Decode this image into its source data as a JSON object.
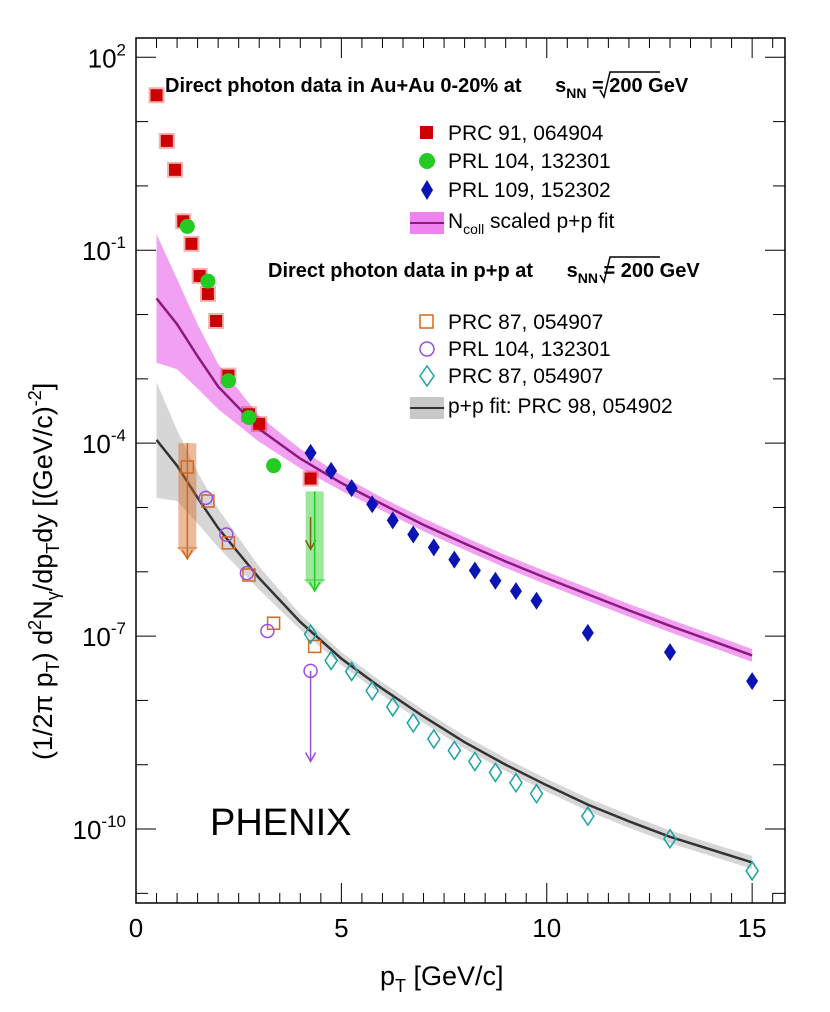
{
  "chart_data": {
    "type": "scatter",
    "title": "",
    "xlabel": "p_T [GeV/c]",
    "xlabel_parts": {
      "main": "p",
      "sub": "T",
      "rest": " [GeV/c]"
    },
    "ylabel_parts": [
      "(1/2π p",
      "T",
      ") d",
      "2",
      "N",
      "γ",
      "/dp",
      "T",
      "dy [(GeV/c)",
      "-2",
      "]"
    ],
    "xlim": [
      0,
      15.8
    ],
    "ylim_log10": [
      -11.15,
      2.3
    ],
    "xticks": [
      0,
      5,
      10,
      15
    ],
    "xtick_labels": [
      "0",
      "5",
      "10",
      "15"
    ],
    "yticks_log10": [
      2,
      -1,
      -4,
      -7,
      -10
    ],
    "ytick_labels": [
      [
        "10",
        "2"
      ],
      [
        "10",
        "-1"
      ],
      [
        "10",
        "-4"
      ],
      [
        "10",
        "-7"
      ],
      [
        "10",
        "-10"
      ]
    ],
    "watermark": "PHENIX",
    "legend_auau": {
      "title_main": "Direct photon data in Au+Au 0-20% at ",
      "title_s": "s",
      "title_sub": "NN",
      "title_end": " = 200 GeV",
      "entries": [
        "PRC 91, 064904",
        "PRL 104, 132301",
        "PRL 109, 152302"
      ],
      "fit_main": "N",
      "fit_sub": "coll",
      "fit_rest": " scaled p+p fit"
    },
    "legend_pp": {
      "title_main": "Direct photon data in p+p at ",
      "title_s": "s",
      "title_sub": "NN",
      "title_end": " = 200 GeV",
      "entries": [
        "PRC 87, 054907",
        "PRL 104, 132301",
        "PRC 87, 054907"
      ],
      "fit_label": "p+p fit: PRC 98, 054902"
    },
    "colors": {
      "prc91": "#cc0000",
      "prl104_auau": "#22cc22",
      "prl109": "#0a14b4",
      "ncoll_fit_line": "#8a1a7e",
      "ncoll_fit_band": "#ee82ee",
      "prc87_square": "#d2691e",
      "prl104_pp": "#9a4fe0",
      "prc87_diamond": "#1ba3a3",
      "pp_fit_line": "#333333",
      "pp_fit_band": "#c8c8c8"
    },
    "series": [
      {
        "name": "PRC 91, 064904",
        "marker": "square",
        "color": "prc91",
        "x": [
          0.5,
          0.75,
          0.95,
          1.15,
          1.35,
          1.55,
          1.75,
          1.95,
          2.25,
          2.75,
          3.0,
          4.25
        ],
        "y_log10": [
          1.41,
          0.7,
          0.25,
          -0.55,
          -0.9,
          -1.4,
          -1.68,
          -2.1,
          -2.95,
          -3.55,
          -3.7,
          -4.55
        ],
        "upper_limit_x": [
          4.25
        ],
        "upper_limit_from": [
          -5.15
        ],
        "upper_limit_to": [
          -5.65
        ]
      },
      {
        "name": "PRL 104, 132301",
        "marker": "circle",
        "color": "prl104_auau",
        "x": [
          1.25,
          1.75,
          2.25,
          2.75,
          3.35
        ],
        "y_log10": [
          -0.63,
          -1.48,
          -3.03,
          -3.6,
          -4.35
        ],
        "upper_limit_x": [
          4.35
        ],
        "upper_limit_from": [
          -4.75
        ],
        "upper_limit_to": [
          -6.3
        ]
      },
      {
        "name": "PRL 109, 152302",
        "marker": "diamond",
        "color": "prl109",
        "x": [
          4.25,
          4.75,
          5.25,
          5.75,
          6.25,
          6.75,
          7.25,
          7.75,
          8.25,
          8.75,
          9.25,
          9.75,
          11.0,
          13.0,
          15.0
        ],
        "y_log10": [
          -4.15,
          -4.43,
          -4.7,
          -4.95,
          -5.2,
          -5.42,
          -5.62,
          -5.81,
          -5.98,
          -6.14,
          -6.3,
          -6.45,
          -6.95,
          -7.25,
          -7.7
        ]
      },
      {
        "name": "PRC 87, 054907",
        "marker": "open-square",
        "color": "prc87_square",
        "x": [
          1.25,
          1.75,
          2.25,
          2.75,
          3.35,
          4.35
        ],
        "y_log10": [
          -4.37,
          -4.9,
          -5.55,
          -6.05,
          -6.8,
          -7.16
        ],
        "upper_limit_x": [
          1.25
        ],
        "upper_limit_from": [
          -4.0
        ],
        "upper_limit_to": [
          -5.8
        ]
      },
      {
        "name": "PRL 104, 132301",
        "marker": "open-circle",
        "color": "prl104_pp",
        "x": [
          1.7,
          2.2,
          2.7,
          3.2,
          4.25
        ],
        "y_log10": [
          -4.85,
          -5.42,
          -6.02,
          -6.92,
          -7.54
        ],
        "upper_limit_x": [
          4.25
        ],
        "upper_limit_from": [
          -7.54
        ],
        "upper_limit_to": [
          -8.95
        ]
      },
      {
        "name": "PRC 87, 054907",
        "marker": "open-diamond",
        "color": "prc87_diamond",
        "x": [
          4.25,
          4.75,
          5.25,
          5.75,
          6.25,
          6.75,
          7.25,
          7.75,
          8.25,
          8.75,
          9.25,
          9.75,
          11.0,
          13.0,
          15.0
        ],
        "y_log10": [
          -6.97,
          -7.38,
          -7.55,
          -7.85,
          -8.1,
          -8.35,
          -8.6,
          -8.78,
          -8.95,
          -9.12,
          -9.28,
          -9.45,
          -9.8,
          -10.15,
          -10.65
        ]
      },
      {
        "name": "N_coll scaled p+p fit",
        "marker": "line-band",
        "color": "ncoll_fit_line",
        "band_color": "ncoll_fit_band",
        "x": [
          0.5,
          1.0,
          1.5,
          2.0,
          3.0,
          4.0,
          5.0,
          6.0,
          7.0,
          8.0,
          9.0,
          10.0,
          11.0,
          12.0,
          13.0,
          14.0,
          15.0
        ],
        "y_log10": [
          -1.75,
          -2.15,
          -2.65,
          -3.12,
          -3.78,
          -4.24,
          -4.62,
          -4.95,
          -5.27,
          -5.56,
          -5.84,
          -6.1,
          -6.35,
          -6.6,
          -6.84,
          -7.07,
          -7.3
        ],
        "band_half_log10": [
          1.0,
          0.7,
          0.5,
          0.35,
          0.2,
          0.15,
          0.12,
          0.1,
          0.1,
          0.1,
          0.1,
          0.1,
          0.1,
          0.1,
          0.1,
          0.1,
          0.1
        ]
      },
      {
        "name": "p+p fit: PRC 98, 054902",
        "marker": "line-band",
        "color": "pp_fit_line",
        "band_color": "pp_fit_band",
        "x": [
          0.5,
          1.0,
          1.5,
          2.0,
          3.0,
          4.0,
          5.0,
          6.0,
          7.0,
          8.0,
          9.0,
          10.0,
          11.0,
          12.0,
          13.0,
          14.0,
          15.0
        ],
        "y_log10": [
          -3.95,
          -4.35,
          -4.85,
          -5.32,
          -6.1,
          -6.78,
          -7.35,
          -7.82,
          -8.25,
          -8.65,
          -9.0,
          -9.32,
          -9.62,
          -9.88,
          -10.12,
          -10.32,
          -10.52
        ],
        "band_half_log10": [
          0.9,
          0.55,
          0.4,
          0.3,
          0.18,
          0.12,
          0.1,
          0.1,
          0.1,
          0.1,
          0.1,
          0.1,
          0.1,
          0.1,
          0.1,
          0.1,
          0.1
        ]
      }
    ]
  }
}
